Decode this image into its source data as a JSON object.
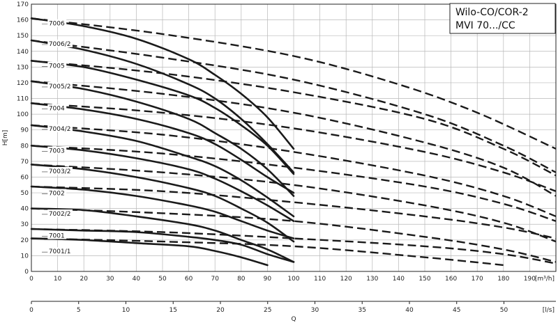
{
  "chart_data": {
    "type": "line",
    "title": [
      "Wilo-CO/COR-2",
      "MVI 70.../CC"
    ],
    "xlabel": "Q",
    "ylabel": "H[m]",
    "x_unit_top": "[m³/h]",
    "x_unit_bottom": "[l/s]",
    "xlim": [
      0,
      200
    ],
    "ylim": [
      0,
      170
    ],
    "x2lim": [
      0,
      55.5
    ],
    "x_ticks": [
      "0",
      "10",
      "20",
      "30",
      "40",
      "50",
      "60",
      "70",
      "80",
      "90",
      "100",
      "110",
      "120",
      "130",
      "140",
      "150",
      "160",
      "170",
      "180",
      "190"
    ],
    "y_ticks": [
      "0",
      "10",
      "20",
      "30",
      "40",
      "50",
      "60",
      "70",
      "80",
      "90",
      "100",
      "110",
      "120",
      "130",
      "140",
      "150",
      "160",
      "170"
    ],
    "x2_ticks": [
      "0",
      "5",
      "10",
      "15",
      "20",
      "25",
      "30",
      "35",
      "40",
      "45",
      "50"
    ],
    "grid": true,
    "series": [
      {
        "name": "7006",
        "label_y": 156,
        "single": {
          "x": [
            0,
            20,
            40,
            60,
            70,
            80,
            90,
            100
          ],
          "y": [
            161,
            156,
            148,
            135,
            125,
            113,
            98,
            78
          ]
        },
        "dual": {
          "x": [
            0,
            50,
            100,
            140,
            170,
            200
          ],
          "y": [
            161,
            151,
            137,
            119,
            101,
            78
          ]
        }
      },
      {
        "name": "7006/2",
        "label_y": 143,
        "single": {
          "x": [
            0,
            20,
            40,
            60,
            70,
            80,
            90,
            100
          ],
          "y": [
            147,
            141,
            132,
            119,
            110,
            97,
            81,
            63
          ]
        },
        "dual": {
          "x": [
            0,
            50,
            100,
            150,
            180,
            200
          ],
          "y": [
            147,
            136,
            122,
            100,
            80,
            63
          ]
        }
      },
      {
        "name": "7005",
        "label_y": 129,
        "single": {
          "x": [
            0,
            20,
            40,
            60,
            70,
            80,
            90,
            100
          ],
          "y": [
            134,
            130,
            122,
            112,
            104,
            93,
            80,
            62
          ]
        },
        "dual": {
          "x": [
            0,
            50,
            100,
            150,
            180,
            200
          ],
          "y": [
            134,
            126,
            114,
            97,
            78,
            61
          ]
        }
      },
      {
        "name": "7005/2",
        "label_y": 116,
        "single": {
          "x": [
            0,
            20,
            40,
            60,
            70,
            80,
            90,
            100
          ],
          "y": [
            121,
            116,
            108,
            97,
            88,
            78,
            65,
            48
          ]
        },
        "dual": {
          "x": [
            0,
            50,
            100,
            150,
            180,
            200
          ],
          "y": [
            121,
            113,
            101,
            82,
            66,
            48
          ]
        }
      },
      {
        "name": "7004",
        "label_y": 102,
        "single": {
          "x": [
            0,
            20,
            40,
            60,
            70,
            80,
            90,
            100
          ],
          "y": [
            107,
            103,
            97,
            88,
            81,
            71,
            60,
            50
          ]
        },
        "dual": {
          "x": [
            0,
            50,
            100,
            150,
            180,
            200
          ],
          "y": [
            107,
            101,
            91,
            76,
            63,
            51
          ]
        }
      },
      {
        "name": "7004/2",
        "label_y": 89,
        "single": {
          "x": [
            0,
            20,
            40,
            60,
            70,
            80,
            90,
            100
          ],
          "y": [
            93,
            89,
            83,
            73,
            67,
            58,
            47,
            35
          ]
        },
        "dual": {
          "x": [
            0,
            50,
            100,
            150,
            180,
            200
          ],
          "y": [
            93,
            87,
            76,
            61,
            48,
            35
          ]
        }
      },
      {
        "name": "7003",
        "label_y": 75,
        "single": {
          "x": [
            0,
            20,
            40,
            60,
            70,
            80,
            90,
            100
          ],
          "y": [
            80,
            77,
            72,
            65,
            59,
            51,
            42,
            32
          ]
        },
        "dual": {
          "x": [
            0,
            50,
            100,
            150,
            180,
            200
          ],
          "y": [
            80,
            75,
            66,
            54,
            43,
            32
          ]
        }
      },
      {
        "name": "7003/2",
        "label_y": 62,
        "single": {
          "x": [
            0,
            20,
            40,
            60,
            70,
            80,
            90,
            100
          ],
          "y": [
            68,
            65,
            60,
            53,
            48,
            40,
            31,
            19
          ]
        },
        "dual": {
          "x": [
            0,
            50,
            100,
            150,
            180,
            200
          ],
          "y": [
            68,
            63,
            55,
            42,
            31,
            19
          ]
        }
      },
      {
        "name": "7002",
        "label_y": 48,
        "single": {
          "x": [
            0,
            20,
            40,
            60,
            70,
            80,
            90,
            100
          ],
          "y": [
            54,
            52,
            48,
            42,
            38,
            32,
            26,
            21
          ]
        },
        "dual": {
          "x": [
            0,
            50,
            100,
            150,
            180,
            200
          ],
          "y": [
            54,
            51,
            44,
            35,
            28,
            21
          ]
        }
      },
      {
        "name": "7002/2",
        "label_y": 35,
        "single": {
          "x": [
            0,
            20,
            40,
            60,
            70,
            80,
            90,
            100
          ],
          "y": [
            40,
            39,
            35,
            30,
            26,
            20,
            14,
            6
          ]
        },
        "dual": {
          "x": [
            0,
            50,
            100,
            150,
            180,
            200
          ],
          "y": [
            40,
            37,
            32,
            22,
            14,
            6
          ]
        }
      },
      {
        "name": "7001",
        "label_y": 21,
        "single": {
          "x": [
            0,
            20,
            40,
            60,
            70,
            80,
            90,
            100
          ],
          "y": [
            27,
            26,
            25,
            22,
            20,
            17,
            11,
            6
          ]
        },
        "dual": {
          "x": [
            0,
            50,
            100,
            150,
            180,
            200
          ],
          "y": [
            27,
            25,
            21,
            16,
            11,
            5
          ]
        }
      },
      {
        "name": "7001/1",
        "label_y": 11,
        "single": {
          "x": [
            0,
            20,
            40,
            60,
            70,
            80,
            90
          ],
          "y": [
            21,
            20,
            18,
            16,
            13,
            9,
            4
          ]
        },
        "dual": {
          "x": [
            0,
            50,
            100,
            150,
            180
          ],
          "y": [
            21,
            19,
            16,
            9,
            4
          ]
        }
      }
    ]
  }
}
